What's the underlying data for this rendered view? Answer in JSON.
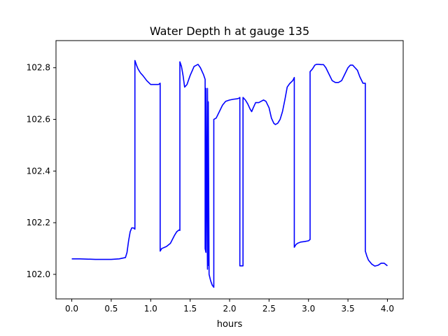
{
  "chart_data": {
    "type": "line",
    "title": "Water Depth h at gauge 135",
    "xlabel": "hours",
    "ylabel": "",
    "xlim": [
      -0.2,
      4.2
    ],
    "ylim": [
      101.905,
      102.905
    ],
    "xticks": [
      0.0,
      0.5,
      1.0,
      1.5,
      2.0,
      2.5,
      3.0,
      3.5,
      4.0
    ],
    "xtick_labels": [
      "0.0",
      "0.5",
      "1.0",
      "1.5",
      "2.0",
      "2.5",
      "3.0",
      "3.5",
      "4.0"
    ],
    "yticks": [
      102.0,
      102.2,
      102.4,
      102.6,
      102.8
    ],
    "ytick_labels": [
      "102.0",
      "102.2",
      "102.4",
      "102.6",
      "102.8"
    ],
    "grid": false,
    "series": [
      {
        "color": "#0000ff",
        "x": [
          0.0,
          0.1,
          0.3,
          0.5,
          0.6,
          0.68,
          0.7,
          0.72,
          0.74,
          0.76,
          0.78,
          0.8,
          0.8,
          0.82,
          0.84,
          0.87,
          0.9,
          0.95,
          1.0,
          1.05,
          1.1,
          1.12,
          1.12,
          1.14,
          1.2,
          1.25,
          1.3,
          1.33,
          1.36,
          1.37,
          1.37,
          1.39,
          1.41,
          1.43,
          1.46,
          1.5,
          1.55,
          1.6,
          1.63,
          1.67,
          1.69,
          1.69,
          1.7,
          1.7,
          1.72,
          1.72,
          1.73,
          1.73,
          1.74,
          1.74,
          1.76,
          1.78,
          1.8,
          1.8,
          1.83,
          1.87,
          1.91,
          1.95,
          2.0,
          2.05,
          2.1,
          2.12,
          2.13,
          2.13,
          2.17,
          2.17,
          2.2,
          2.23,
          2.26,
          2.28,
          2.3,
          2.33,
          2.37,
          2.4,
          2.43,
          2.46,
          2.5,
          2.53,
          2.56,
          2.58,
          2.61,
          2.64,
          2.67,
          2.7,
          2.73,
          2.76,
          2.8,
          2.82,
          2.82,
          2.84,
          2.86,
          2.9,
          2.95,
          3.0,
          3.02,
          3.02,
          3.05,
          3.08,
          3.1,
          3.13,
          3.16,
          3.19,
          3.22,
          3.26,
          3.3,
          3.34,
          3.38,
          3.42,
          3.46,
          3.5,
          3.53,
          3.56,
          3.59,
          3.62,
          3.65,
          3.69,
          3.72,
          3.72,
          3.74,
          3.76,
          3.8,
          3.84,
          3.88,
          3.92,
          3.96,
          4.0
        ],
        "y": [
          102.06,
          102.06,
          102.058,
          102.058,
          102.06,
          102.065,
          102.085,
          102.13,
          102.165,
          102.18,
          102.18,
          102.175,
          102.828,
          102.81,
          102.795,
          102.78,
          102.77,
          102.75,
          102.735,
          102.735,
          102.735,
          102.74,
          102.09,
          102.1,
          102.108,
          102.12,
          102.15,
          102.165,
          102.172,
          102.17,
          102.823,
          102.805,
          102.77,
          102.725,
          102.735,
          102.77,
          102.805,
          102.813,
          102.8,
          102.773,
          102.755,
          102.1,
          102.085,
          102.72,
          102.02,
          102.72,
          102.035,
          102.668,
          102.01,
          102.0,
          101.975,
          101.958,
          101.95,
          102.6,
          102.605,
          102.63,
          102.655,
          102.67,
          102.675,
          102.678,
          102.68,
          102.682,
          102.685,
          102.033,
          102.033,
          102.685,
          102.675,
          102.66,
          102.64,
          102.63,
          102.645,
          102.665,
          102.665,
          102.67,
          102.675,
          102.67,
          102.645,
          102.605,
          102.585,
          102.58,
          102.585,
          102.6,
          102.63,
          102.675,
          102.725,
          102.738,
          102.75,
          102.762,
          102.105,
          102.115,
          102.12,
          102.125,
          102.127,
          102.13,
          102.135,
          102.785,
          102.795,
          102.81,
          102.813,
          102.813,
          102.812,
          102.812,
          102.8,
          102.775,
          102.75,
          102.743,
          102.743,
          102.75,
          102.775,
          102.8,
          102.81,
          102.81,
          102.8,
          102.79,
          102.765,
          102.74,
          102.74,
          102.09,
          102.07,
          102.055,
          102.04,
          102.032,
          102.035,
          102.043,
          102.043,
          102.033
        ]
      }
    ]
  }
}
